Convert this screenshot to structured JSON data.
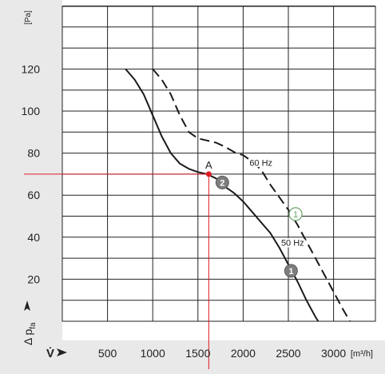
{
  "chart_data": {
    "type": "line",
    "y_unit": "[Pa]",
    "y_axis_symbol": "Δ p",
    "y_axis_subscript": "fa",
    "x_axis_symbol": "V̇",
    "x_unit": "[m³/h]",
    "y_ticks": [
      20,
      40,
      60,
      80,
      100,
      120
    ],
    "x_ticks": [
      500,
      1000,
      1500,
      2000,
      2500,
      3000
    ],
    "x_tick_labels": [
      "500",
      "1000",
      "1500",
      "2000",
      "2500",
      "3000"
    ],
    "xlim": [
      0,
      3500
    ],
    "ylim": [
      0,
      150
    ],
    "grid": true,
    "series": [
      {
        "name": "50 Hz",
        "curve_number": "2",
        "style": "solid",
        "points": [
          [
            700,
            120
          ],
          [
            800,
            115
          ],
          [
            900,
            108
          ],
          [
            1000,
            98
          ],
          [
            1100,
            88
          ],
          [
            1200,
            80
          ],
          [
            1300,
            75
          ],
          [
            1400,
            72.5
          ],
          [
            1500,
            71
          ],
          [
            1600,
            70
          ],
          [
            1700,
            68
          ],
          [
            1800,
            64
          ],
          [
            1900,
            61
          ],
          [
            2000,
            57
          ],
          [
            2100,
            52
          ],
          [
            2200,
            47
          ],
          [
            2300,
            42
          ],
          [
            2400,
            35
          ],
          [
            2500,
            27
          ],
          [
            2600,
            19
          ],
          [
            2700,
            10
          ],
          [
            2800,
            2
          ],
          [
            2830,
            0
          ]
        ]
      },
      {
        "name": "60 Hz",
        "curve_number": "1",
        "style": "dashed",
        "points": [
          [
            1000,
            120
          ],
          [
            1100,
            115
          ],
          [
            1200,
            108
          ],
          [
            1300,
            98
          ],
          [
            1400,
            90
          ],
          [
            1500,
            87
          ],
          [
            1600,
            86
          ],
          [
            1700,
            85
          ],
          [
            1800,
            83
          ],
          [
            1900,
            80.5
          ],
          [
            2000,
            79
          ],
          [
            2100,
            76
          ],
          [
            2200,
            72
          ],
          [
            2300,
            65
          ],
          [
            2400,
            59
          ],
          [
            2500,
            53
          ],
          [
            2600,
            46
          ],
          [
            2700,
            38
          ],
          [
            2800,
            30
          ],
          [
            2900,
            22
          ],
          [
            3000,
            14
          ],
          [
            3100,
            6
          ],
          [
            3180,
            0
          ]
        ]
      }
    ],
    "operating_point": {
      "label": "A",
      "x": 1620,
      "y": 70,
      "color": "#e01b24"
    },
    "markers": [
      {
        "number": "2",
        "x": 1770,
        "y": 66,
        "style": "filled"
      },
      {
        "number": "1",
        "x": 2580,
        "y": 51,
        "style": "outline"
      },
      {
        "number": "1",
        "x": 2530,
        "y": 24,
        "style": "filled"
      }
    ],
    "series_labels": [
      {
        "text": "60 Hz",
        "x": 2070,
        "y": 74
      },
      {
        "text": "50 Hz",
        "x": 2420,
        "y": 36
      }
    ]
  }
}
